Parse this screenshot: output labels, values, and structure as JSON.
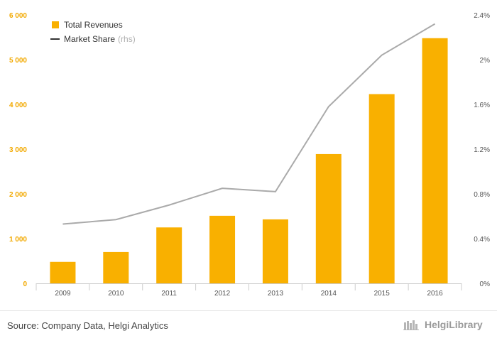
{
  "chart_data": {
    "type": "bar",
    "categories": [
      "2009",
      "2010",
      "2011",
      "2012",
      "2013",
      "2014",
      "2015",
      "2016"
    ],
    "series": [
      {
        "name": "Total Revenues",
        "type": "bar",
        "axis": "left",
        "color": "#f9b000",
        "values": [
          480,
          700,
          1250,
          1510,
          1430,
          2890,
          4230,
          5480
        ]
      },
      {
        "name": "Market Share",
        "type": "line",
        "axis": "right",
        "color": "#aaaaaa",
        "values": [
          0.53,
          0.57,
          0.7,
          0.85,
          0.82,
          1.58,
          2.04,
          2.32
        ]
      }
    ],
    "left_axis": {
      "ylim": [
        0,
        6000
      ],
      "ticks": [
        0,
        1000,
        2000,
        3000,
        4000,
        5000,
        6000
      ],
      "tick_labels": [
        "0",
        "1 000",
        "2 000",
        "3 000",
        "4 000",
        "5 000",
        "6 000"
      ],
      "color": "#f2a900"
    },
    "right_axis": {
      "ylim": [
        0,
        2.4
      ],
      "ticks": [
        0,
        0.4,
        0.8,
        1.2,
        1.6,
        2.0,
        2.4
      ],
      "tick_labels": [
        "0%",
        "0.4%",
        "0.8%",
        "1.2%",
        "1.6%",
        "2%",
        "2.4%"
      ]
    },
    "legend": {
      "position": "top-left",
      "items": [
        {
          "label": "Total Revenues"
        },
        {
          "label": "Market Share",
          "suffix": "(rhs)"
        }
      ]
    },
    "grid": false
  },
  "footer": {
    "source": "Source: Company Data, Helgi Analytics",
    "logo_text": "HelgiLibrary"
  }
}
